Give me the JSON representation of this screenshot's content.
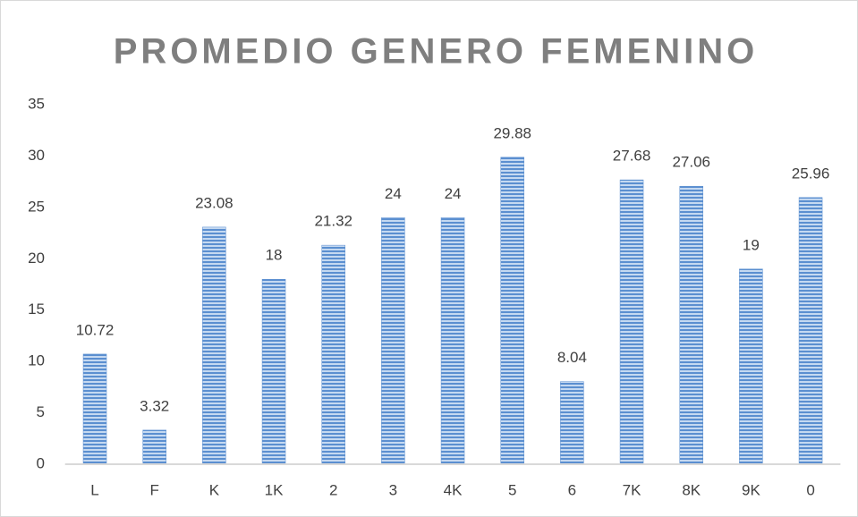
{
  "chart_data": {
    "type": "bar",
    "title": "PROMEDIO GENERO FEMENINO",
    "categories": [
      "L",
      "F",
      "K",
      "1K",
      "2",
      "3",
      "4K",
      "5",
      "6",
      "7K",
      "8K",
      "9K",
      "0"
    ],
    "values": [
      10.72,
      3.32,
      23.08,
      18,
      21.32,
      24,
      24,
      29.88,
      8.04,
      27.68,
      27.06,
      19,
      25.96
    ],
    "color": "#5b8fd0",
    "ylim": [
      0,
      35
    ],
    "yticks": [
      0,
      5,
      10,
      15,
      20,
      25,
      30,
      35
    ],
    "grid": false
  }
}
